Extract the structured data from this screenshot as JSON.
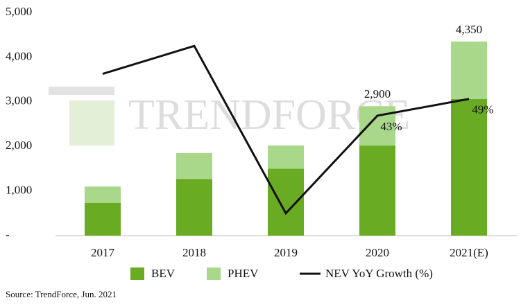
{
  "chart_data": {
    "type": "bar",
    "categories": [
      "2017",
      "2018",
      "2019",
      "2020",
      "2021(E)"
    ],
    "series": [
      {
        "name": "BEV",
        "color": "#6aab24",
        "type": "bar",
        "values": [
          730,
          1270,
          1500,
          2020,
          3060
        ]
      },
      {
        "name": "PHEV",
        "color": "#a9d88a",
        "type": "bar",
        "values": [
          370,
          580,
          520,
          880,
          1290
        ]
      },
      {
        "name": "NEV YoY Growth (%)",
        "color": "#111111",
        "type": "line",
        "axis": "y2",
        "values": [
          58,
          68,
          8,
          43,
          49
        ],
        "value_labels": [
          null,
          null,
          null,
          "43%",
          "49%"
        ]
      }
    ],
    "annotations": [
      {
        "category": "2020",
        "text": "2,900"
      },
      {
        "category": "2021(E)",
        "text": "4,350"
      }
    ],
    "ylim": [
      0,
      5000
    ],
    "yticks": [
      {
        "value": 0,
        "label": "-"
      },
      {
        "value": 1000,
        "label": "1,000"
      },
      {
        "value": 2000,
        "label": "2,000"
      },
      {
        "value": 3000,
        "label": "3,000"
      },
      {
        "value": 4000,
        "label": "4,000"
      },
      {
        "value": 5000,
        "label": "5,000"
      }
    ],
    "y2lim": [
      0,
      80
    ],
    "watermark": "TRENDFORCE",
    "source": "Source: TrendForce, Jun. 2021"
  }
}
